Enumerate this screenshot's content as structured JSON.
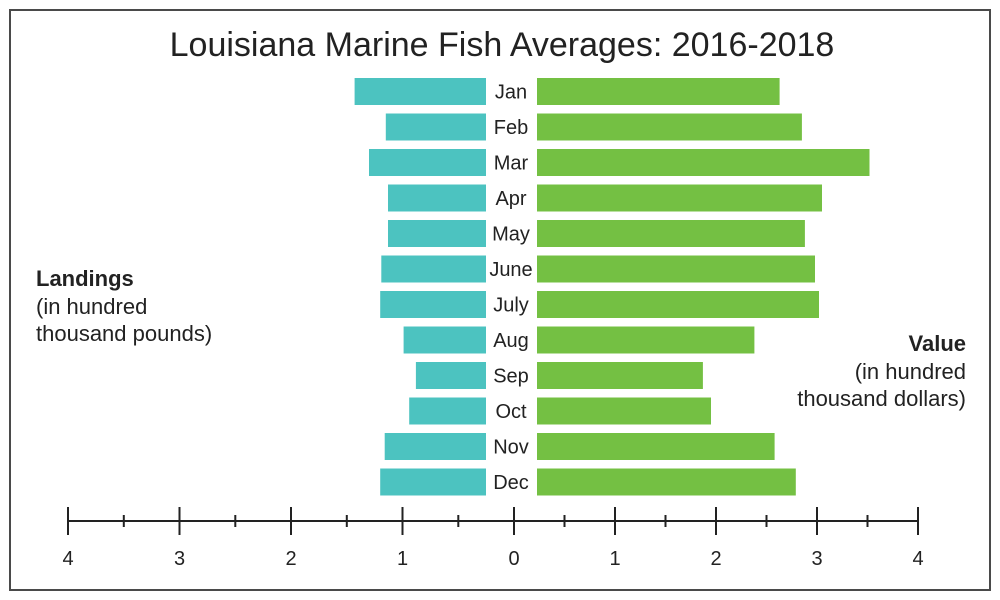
{
  "chart_data": {
    "type": "bar",
    "orientation": "horizontal-diverging",
    "title": "Louisiana Marine Fish Averages: 2016-2018",
    "categories": [
      "Jan",
      "Feb",
      "Mar",
      "Apr",
      "May",
      "June",
      "July",
      "Aug",
      "Sep",
      "Oct",
      "Nov",
      "Dec"
    ],
    "left_label": {
      "heading": "Landings",
      "line1": "(in hundred",
      "line2": "thousand pounds)"
    },
    "right_label": {
      "heading": "Value",
      "line1": "(in hundred",
      "line2": "thousand dollars)"
    },
    "series": [
      {
        "side": "left",
        "color": "#4cc3c0",
        "values": [
          1.43,
          1.15,
          1.3,
          1.13,
          1.13,
          1.19,
          1.2,
          0.99,
          0.88,
          0.94,
          1.16,
          1.2
        ]
      },
      {
        "side": "right",
        "color": "#74c043",
        "values": [
          2.63,
          2.85,
          3.52,
          3.05,
          2.88,
          2.98,
          3.02,
          2.38,
          1.87,
          1.95,
          2.58,
          2.79
        ]
      }
    ],
    "left_ticks": [
      "4",
      "3",
      "2",
      "1",
      "0"
    ],
    "right_ticks": [
      "1",
      "2",
      "3",
      "4"
    ],
    "xlim_left": [
      0,
      4
    ],
    "xlim_right": [
      0,
      4
    ]
  }
}
